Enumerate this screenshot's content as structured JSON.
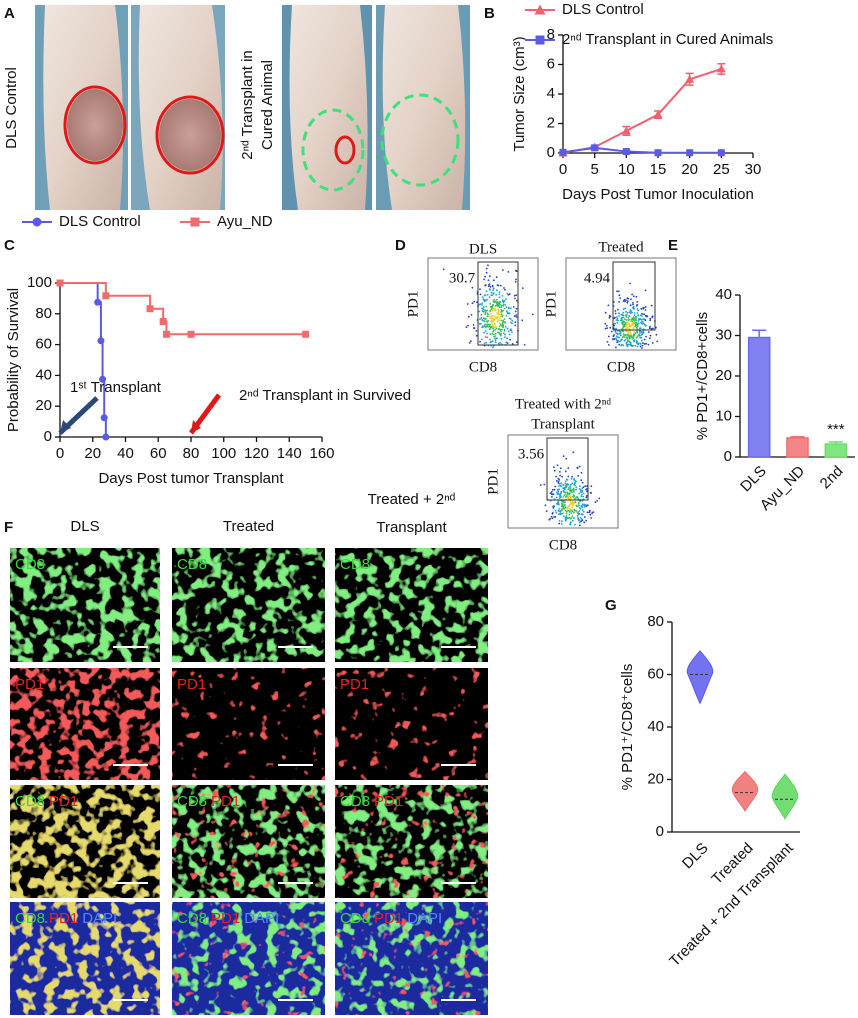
{
  "panel_labels": [
    "A",
    "B",
    "C",
    "D",
    "E",
    "F",
    "G"
  ],
  "photos": {
    "labels": [
      "DLS Control",
      "2ⁿᵈ Transplant in",
      "Cured Animal"
    ]
  },
  "flow": {
    "x_label": "CD8",
    "y_label": "PD1",
    "plots": [
      {
        "title": [
          "DLS"
        ],
        "gate": "30.7"
      },
      {
        "title": [
          "Treated"
        ],
        "gate": "4.94"
      },
      {
        "title": [
          "Treated with 2ⁿᵈ",
          "Transplant"
        ],
        "gate": "3.56"
      }
    ]
  },
  "micrographs": {
    "columns": [
      [
        "DLS"
      ],
      [
        "Treated"
      ],
      [
        "Treated + 2ⁿᵈ",
        "Transplant"
      ]
    ],
    "rows": [
      [
        {
          "text": "CD8",
          "color": "#39d839"
        }
      ],
      [
        {
          "text": "PD1",
          "color": "#e82020"
        }
      ],
      [
        {
          "text": "CD8",
          "color": "#39d839"
        },
        {
          "text": "PD1",
          "color": "#e82020"
        }
      ],
      [
        {
          "text": "CD8",
          "color": "#39d839"
        },
        {
          "text": "PD1",
          "color": "#e82020"
        },
        {
          "text": "DAPI",
          "color": "#4a8cff"
        }
      ]
    ]
  },
  "chart_data": [
    {
      "type": "line",
      "legend": "top",
      "x_label": "Days Post Tumor Inoculation",
      "y_label": "Tumor Size (cm³)",
      "x": [
        0,
        5,
        10,
        15,
        20,
        25
      ],
      "series": [
        {
          "name": "DLS Control",
          "color": "#f0606e",
          "marker": "triangle",
          "values": [
            0,
            0.4,
            1.5,
            2.6,
            5.0,
            5.7
          ],
          "errors": [
            0.05,
            0.1,
            0.3,
            0.25,
            0.4,
            0.35
          ]
        },
        {
          "name": "2ⁿᵈ Transplant in Cured Animals",
          "color": "#5b5be8",
          "marker": "square",
          "values": [
            0.05,
            0.35,
            0.1,
            0.02,
            0.02,
            0.02
          ],
          "errors": [
            0.02,
            0.05,
            0.05,
            0.01,
            0.01,
            0.01
          ]
        }
      ],
      "xlim": [
        0,
        30
      ],
      "xticks": [
        0,
        5,
        10,
        15,
        20,
        25,
        30
      ],
      "ylim": [
        0,
        8
      ],
      "yticks": [
        0,
        2,
        4,
        6,
        8
      ]
    },
    {
      "type": "step",
      "legend": "top",
      "x_label": "Days Post tumor Transplant",
      "y_label": "Probability of Survival",
      "series": [
        {
          "name": "DLS Control",
          "color": "#5a5ae6",
          "marker": "circle",
          "x": [
            0,
            23,
            25,
            26,
            27,
            28
          ],
          "values": [
            100,
            87.5,
            62.5,
            37.5,
            12.5,
            0
          ]
        },
        {
          "name": "Ayu_ND",
          "color": "#f06b6b",
          "marker": "square",
          "x": [
            0,
            28,
            55,
            63,
            65,
            80,
            150
          ],
          "values": [
            100,
            91.7,
            83.3,
            75,
            66.7,
            66.7,
            66.7
          ]
        }
      ],
      "annotations": [
        {
          "text": "1ˢᵗ Transplant",
          "x": 0,
          "color": "#2b4a7a"
        },
        {
          "text": "2ⁿᵈ Transplant in Survived",
          "x": 80,
          "color": "#e01818"
        }
      ],
      "xlim": [
        0,
        160
      ],
      "xticks": [
        0,
        20,
        40,
        60,
        80,
        100,
        120,
        140,
        160
      ],
      "ylim": [
        0,
        100
      ],
      "yticks": [
        0,
        20,
        40,
        60,
        80,
        100
      ]
    },
    {
      "type": "bar",
      "y_label": "% PD1+/CD8+cells",
      "categories": [
        "DLS",
        "Ayu_ND",
        "2nd"
      ],
      "values": [
        29.5,
        4.7,
        3.2
      ],
      "errors": [
        1.8,
        0.3,
        0.5
      ],
      "colors": [
        "#6b6bf0",
        "#f07070",
        "#6be06b"
      ],
      "annotation": "***",
      "ylim": [
        0,
        40
      ],
      "yticks": [
        0,
        10,
        20,
        30,
        40
      ]
    },
    {
      "type": "violin",
      "y_label": "% PD1⁺/CD8⁺cells",
      "categories": [
        "DLS",
        "Treated",
        "Treated + 2nd Transplant"
      ],
      "medians": [
        60,
        15,
        12.5
      ],
      "mins": [
        49,
        8,
        5
      ],
      "maxs": [
        69,
        23,
        22
      ],
      "colors": [
        "#5b5bf0",
        "#f06b6b",
        "#5bd65b"
      ],
      "ylim": [
        0,
        80
      ],
      "yticks": [
        0,
        20,
        40,
        60,
        80
      ]
    }
  ]
}
